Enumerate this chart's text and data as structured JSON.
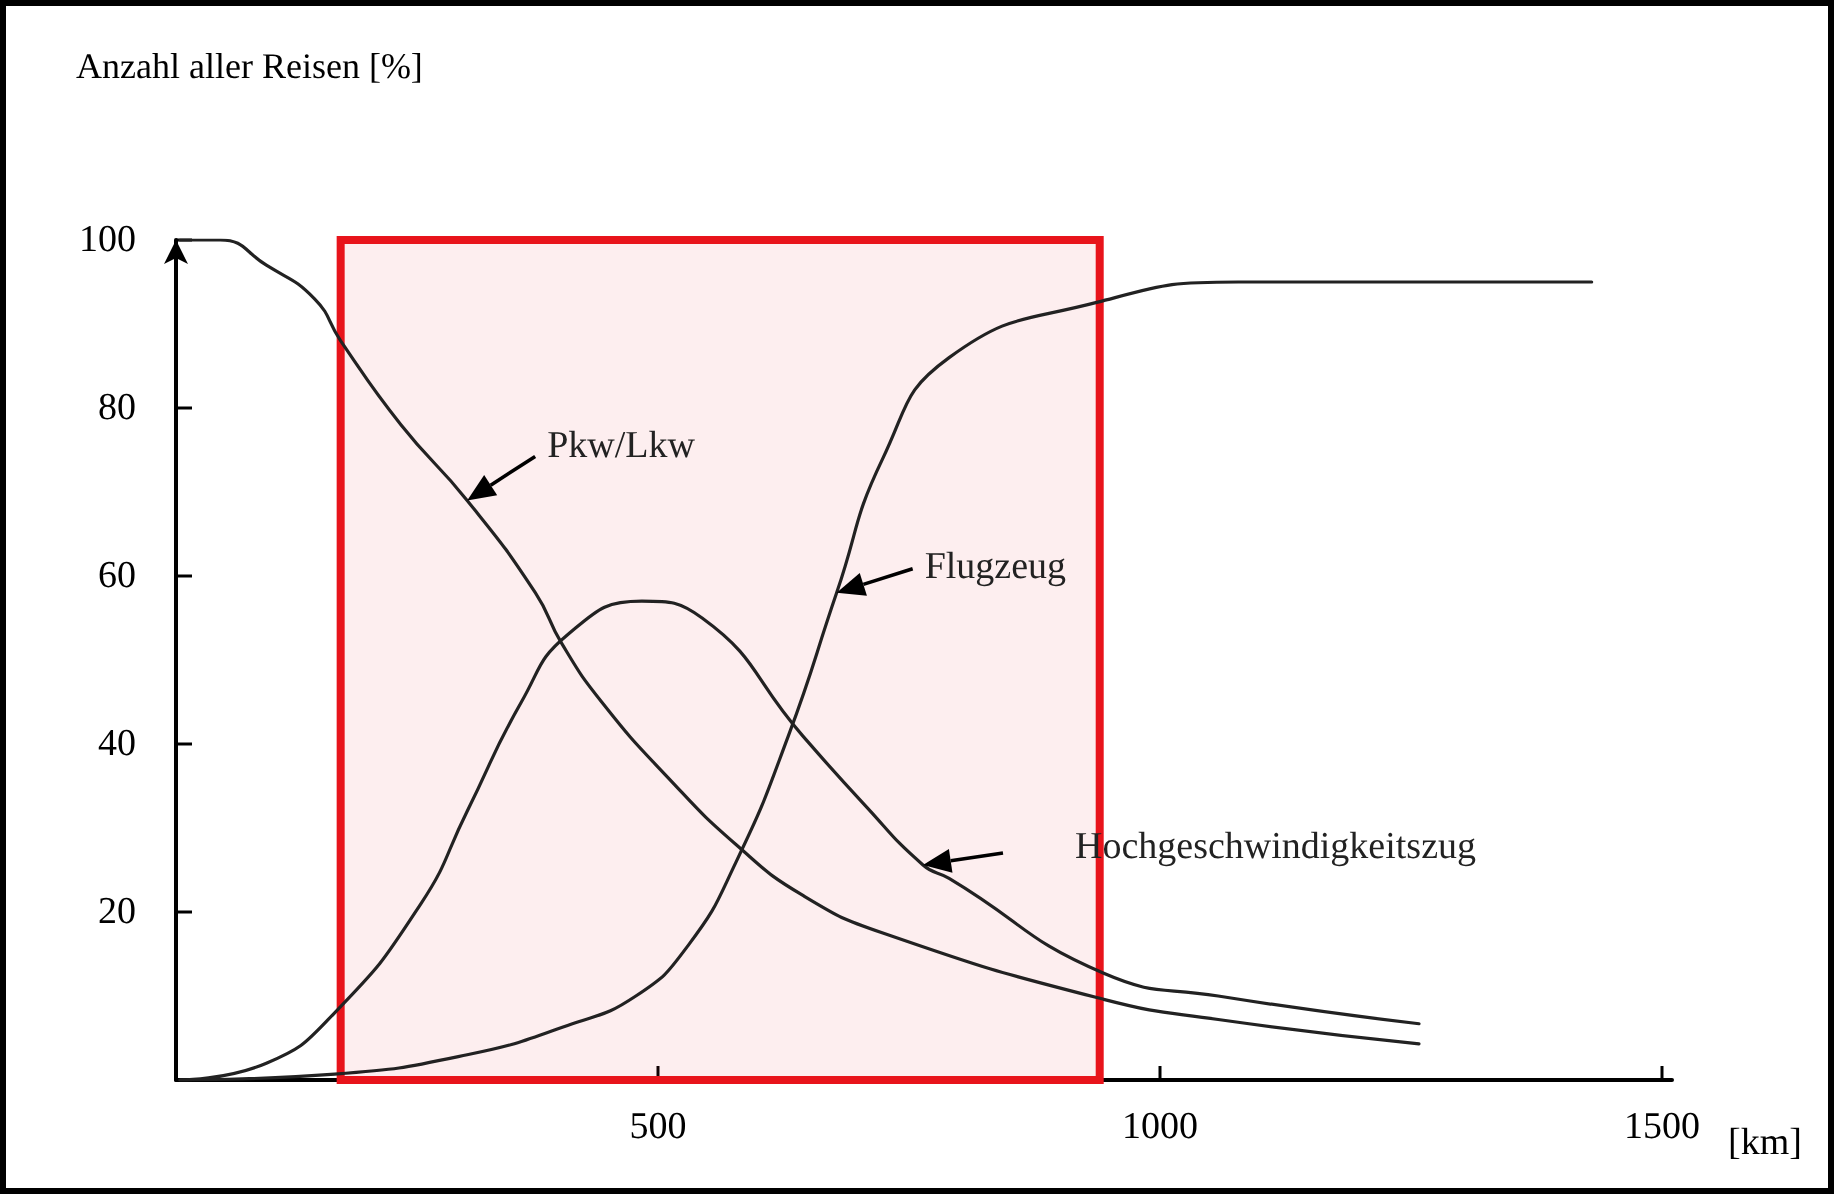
{
  "chart_data": {
    "type": "line",
    "ylabel": "Anzahl aller Reisen [%]",
    "xlabel": "[km]",
    "xlim": [
      20,
      1510
    ],
    "xticks": [
      500,
      1000,
      1500
    ],
    "ylim": [
      0,
      100
    ],
    "yticks": [
      20,
      40,
      60,
      80,
      100
    ],
    "grid": false,
    "legend": false,
    "marker": "none",
    "line_style": "solid",
    "series": [
      {
        "name": "Pkw/Lkw",
        "color": "#222222",
        "x": [
          24,
          64,
          110,
          158,
          184,
          244,
          310,
          378,
          404,
          444,
          510,
          578,
          644,
          724,
          944,
          1058,
          1258
        ],
        "values": [
          100,
          100,
          97,
          93,
          88,
          78,
          69,
          58,
          52,
          45,
          36,
          28,
          22,
          17.5,
          9.6,
          7.2,
          4.3
        ]
      },
      {
        "name": "Flugzeug",
        "color": "#222222",
        "x": [
          24,
          178,
          310,
          410,
          478,
          530,
          578,
          630,
          678,
          724,
          790,
          938,
          1078,
          1430
        ],
        "values": [
          0,
          0.7,
          3,
          6.5,
          10,
          16,
          26,
          41,
          58,
          74,
          86,
          92.6,
          95,
          95
        ]
      },
      {
        "name": "Hochgeschwindigkeitszug",
        "color": "#222222",
        "x": [
          24,
          110,
          178,
          264,
          310,
          364,
          410,
          484,
          544,
          644,
          704,
          764,
          790,
          944,
          1058,
          1258
        ],
        "values": [
          0,
          2,
          8,
          21,
          32,
          45,
          53,
          57,
          55,
          41,
          33,
          25.6,
          24,
          12.7,
          10,
          6.7
        ]
      }
    ],
    "bands": [
      {
        "axis": "x",
        "from": 184,
        "to": 940,
        "color": "#e8141b"
      }
    ]
  }
}
